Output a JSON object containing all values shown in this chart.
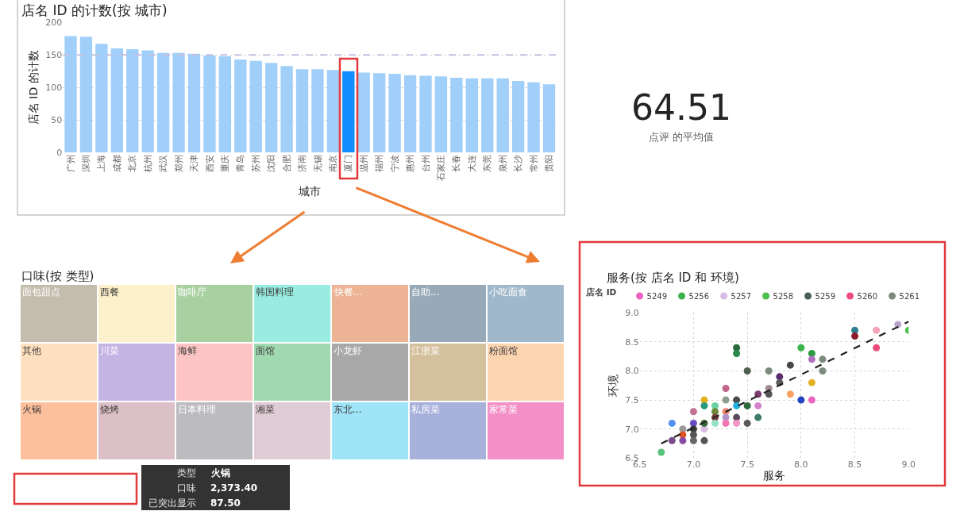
{
  "chart_data": [
    {
      "type": "bar",
      "title": "店名 ID 的计数(按 城市)",
      "xlabel": "城市",
      "ylabel": "店名 ID 的计数",
      "categories": [
        "广州",
        "深圳",
        "上海",
        "成都",
        "北京",
        "杭州",
        "武汉",
        "郑州",
        "天津",
        "西安",
        "重庆",
        "青岛",
        "苏州",
        "沈阳",
        "合肥",
        "济南",
        "无锡",
        "南京",
        "厦门",
        "温州",
        "福州",
        "宁波",
        "惠州",
        "台州",
        "石家庄",
        "长春",
        "大连",
        "东莞",
        "泉州",
        "长沙",
        "常州",
        "贵阳"
      ],
      "values": [
        179,
        178,
        167,
        160,
        159,
        157,
        153,
        153,
        152,
        149,
        148,
        143,
        141,
        138,
        133,
        128,
        128,
        127,
        125,
        123,
        122,
        121,
        119,
        118,
        117,
        115,
        114,
        114,
        114,
        110,
        108,
        105
      ],
      "colors": [
        "#a0cffa",
        "#a0cffa",
        "#a0cffa",
        "#a0cffa",
        "#a0cffa",
        "#a0cffa",
        "#a0cffa",
        "#a0cffa",
        "#a0cffa",
        "#a0cffa",
        "#a0cffa",
        "#a0cffa",
        "#a0cffa",
        "#a0cffa",
        "#a0cffa",
        "#a0cffa",
        "#a0cffa",
        "#a0cffa",
        "#118dff",
        "#a0cffa",
        "#a0cffa",
        "#a0cffa",
        "#a0cffa",
        "#a0cffa",
        "#a0cffa",
        "#a0cffa",
        "#a0cffa",
        "#a0cffa",
        "#a0cffa",
        "#a0cffa",
        "#a0cffa",
        "#a0cffa"
      ],
      "ylim": [
        0,
        200
      ],
      "yticks": [
        0,
        50,
        100,
        150,
        200
      ],
      "grid": "y",
      "ref_lines": [
        {
          "axis": "y",
          "value": 150,
          "color": "#c4c1de",
          "line_style": "dashed"
        }
      ]
    },
    {
      "type": "other",
      "annotations": [
        "64.51",
        "点评 的平均值"
      ]
    },
    {
      "type": "other",
      "title": "口味(按 类型)",
      "categories": [
        "面包甜点",
        "其他",
        "火锅",
        "西餐",
        "川菜",
        "烧烤",
        "咖啡厅",
        "海鲜",
        "日本料理",
        "韩国料理",
        "面馆",
        "湘菜",
        "快餐...",
        "小龙虾",
        "东北...",
        "自助...",
        "小吃面食",
        "江浙菜",
        "私房菜",
        "粉面馆",
        "家常菜"
      ],
      "colors": [
        "#c4bcac",
        "#fde0c0",
        "#fdc09c",
        "#fdf1cc",
        "#c4b4e4",
        "#dcc0c8",
        "#a8d0a0",
        "#fcc4c4",
        "#bcbcc0",
        "#98ece0",
        "#a0d8b0",
        "#e0ccd4",
        "#ecb494",
        "#a8a8a8",
        "#a0e4f8",
        "#98aab8",
        "#a0b8cc",
        "#d4c09c",
        "#a8b0dc",
        "#fcd4b0",
        "#f490c8"
      ],
      "annotations": [
        "类型",
        "火锅",
        "口味",
        "2,373.40",
        "已突出显示",
        "87.50"
      ]
    },
    {
      "type": "scatter",
      "title": "服务(按 店名 ID 和 环境)",
      "xlabel": "服务",
      "ylabel": "环境",
      "legend_title": "店名 ID",
      "legend": "top",
      "marker": "circle",
      "grid": true,
      "xlim": [
        6.5,
        9
      ],
      "ylim": [
        6.5,
        9
      ],
      "xticks": [
        6.5,
        {
          "value": 7,
          "label": "7.0"
        },
        7.5,
        {
          "value": 8,
          "label": "8.0"
        },
        8.5,
        {
          "value": 9,
          "label": "9.0"
        }
      ],
      "yticks": [
        6.5,
        {
          "value": 7,
          "label": "7.0"
        },
        7.5,
        {
          "value": 8,
          "label": "8.0"
        },
        8.5,
        {
          "value": 9,
          "label": "9.0"
        }
      ],
      "series": [
        {
          "name": "5249",
          "color": "#f062c2",
          "x": [
            8.1
          ],
          "values": [
            7.5
          ]
        },
        {
          "name": "5256",
          "color": "#3cb44b",
          "x": [
            8.0
          ],
          "values": [
            8.4
          ]
        },
        {
          "name": "5257",
          "color": "#d7bde2",
          "x": [
            7.1
          ],
          "values": [
            7.0
          ]
        },
        {
          "name": "5258",
          "color": "#4ec24e",
          "x": [
            9.0
          ],
          "values": [
            8.7
          ]
        },
        {
          "name": "5259",
          "color": "#4f5f4f",
          "x": [
            7.5
          ],
          "values": [
            8.0
          ]
        },
        {
          "name": "5260",
          "color": "#ea4c7c",
          "x": [
            8.7
          ],
          "values": [
            8.4
          ]
        },
        {
          "name": "5261",
          "color": "#7b8b7b",
          "x": [
            8.2
          ],
          "values": [
            8.2
          ]
        },
        {
          "x": [
            8.5,
            8.5,
            8.7,
            8.9,
            8.1,
            8.1,
            8.2,
            7.9,
            7.8,
            7.8,
            7.7,
            7.7,
            7.7,
            7.6,
            7.6,
            7.6,
            7.5,
            7.5,
            7.4,
            7.4,
            7.4,
            7.4,
            7.4,
            7.4,
            7.3,
            7.3,
            7.3,
            7.3,
            7.3,
            7.2,
            7.2,
            7.2,
            7.2,
            7.1,
            7.1,
            7.1,
            7.1,
            7.0,
            7.0,
            7.0,
            7.0,
            7.0,
            6.9,
            6.9,
            6.9,
            6.8,
            6.8,
            6.7,
            7.9,
            8.0,
            8.1
          ],
          "values": [
            8.7,
            8.6,
            8.7,
            8.8,
            8.3,
            8.2,
            8.0,
            8.1,
            7.9,
            7.8,
            8.0,
            7.7,
            7.6,
            7.6,
            7.4,
            7.2,
            7.4,
            7.1,
            8.4,
            8.3,
            7.5,
            7.4,
            7.2,
            7.1,
            7.7,
            7.5,
            7.3,
            7.2,
            7.1,
            7.4,
            7.3,
            7.2,
            7.1,
            7.5,
            7.4,
            7.1,
            6.8,
            7.3,
            7.1,
            7.0,
            6.9,
            6.8,
            7.0,
            6.9,
            6.8,
            7.1,
            6.8,
            6.6,
            7.6,
            7.5,
            7.8
          ],
          "colors": [
            "#2e7f8e",
            "#8a1c2c",
            "#f5a3bb",
            "#b9a3c9",
            "#2a9a3c",
            "#b070c0",
            "#7b8b7b",
            "#484848",
            "#5b2c6c",
            "#5c5c5c",
            "#7b8b7b",
            "#a38c94",
            "#555555",
            "#7c3c6c",
            "#d484cc",
            "#3c7a6a",
            "#2a6a3a",
            "#5a5a5a",
            "#2a6a3c",
            "#2a8a4c",
            "#4a4a4a",
            "#22b0e2",
            "#5a4a5a",
            "#f294c4",
            "#c2648a",
            "#8c9c8c",
            "#f2846c",
            "#b294ca",
            "#f274b4",
            "#6ad2a2",
            "#6a8a3a",
            "#7c3c3c",
            "#94e2c4",
            "#e2b222",
            "#2a9a7a",
            "#3a6a3a",
            "#555555",
            "#c27292",
            "#6a4ac8",
            "#3a3a3a",
            "#555555",
            "#666666",
            "#9a9a9a",
            "#e25222",
            "#8a4aa2",
            "#5292f2",
            "#7a4a8a",
            "#5ac27a",
            "#f8a262",
            "#2242c2",
            "#e2b222"
          ]
        },
        {
          "type": "line",
          "color": "#222222",
          "line_style": "dashed",
          "marker": "none",
          "x": [
            6.7,
            9.0
          ],
          "values": [
            6.75,
            8.85
          ]
        }
      ]
    }
  ]
}
